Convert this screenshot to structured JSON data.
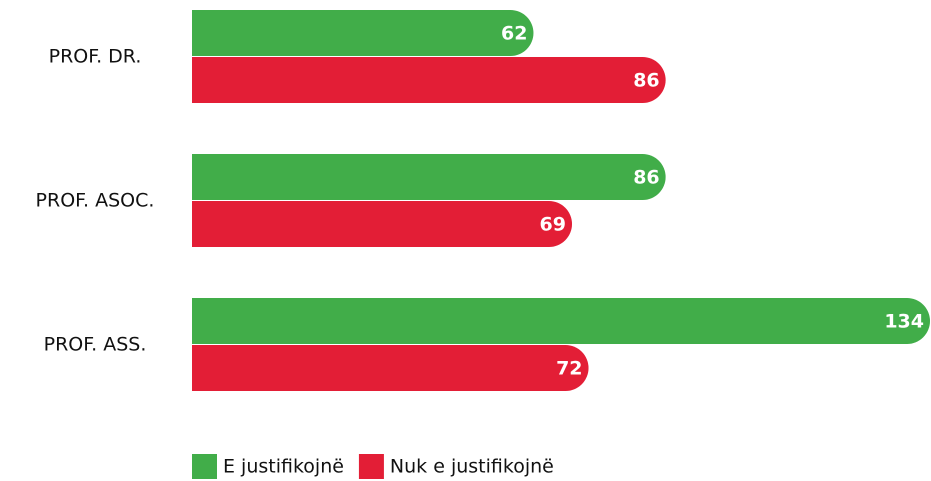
{
  "chart_data": {
    "type": "bar",
    "orientation": "horizontal",
    "categories": [
      "PROF. DR.",
      "PROF. ASOC.",
      "PROF. ASS."
    ],
    "series": [
      {
        "name": "E justifikojnë",
        "color": "#41ad49",
        "values": [
          62,
          86,
          134
        ]
      },
      {
        "name": "Nuk e justifikojnë",
        "color": "#e31e36",
        "values": [
          86,
          69,
          72
        ]
      }
    ],
    "legend": "bottom"
  }
}
